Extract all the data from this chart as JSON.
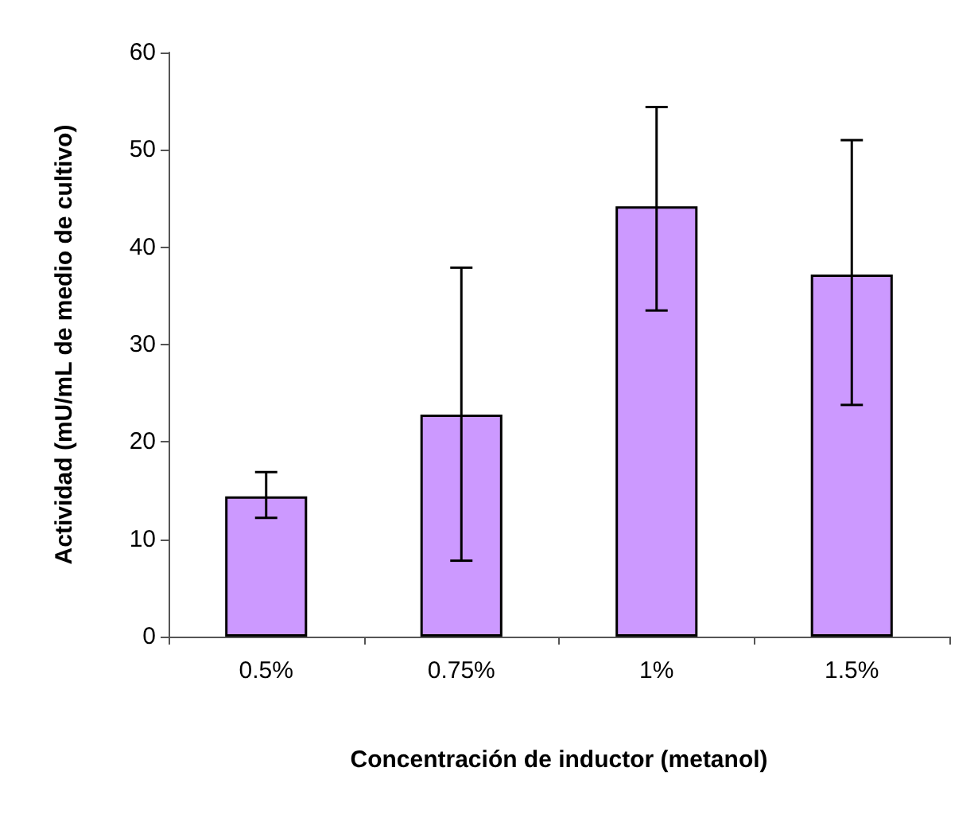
{
  "chart_data": {
    "type": "bar",
    "xlabel": "Concentración de inductor (metanol)",
    "ylabel": "Actividad (mU/mL de medio de cultivo)",
    "categories": [
      "0.5%",
      "0.75%",
      "1%",
      "1.5%"
    ],
    "values": [
      14.4,
      22.8,
      44.2,
      37.2
    ],
    "errors": [
      [
        12.2,
        16.9
      ],
      [
        7.8,
        37.9
      ],
      [
        33.5,
        54.4
      ],
      [
        23.8,
        51.0
      ]
    ],
    "color": "#cc99ff",
    "ylim": [
      0,
      60
    ],
    "yticks": [
      0,
      10,
      20,
      30,
      40,
      50,
      60
    ],
    "grid": false
  }
}
